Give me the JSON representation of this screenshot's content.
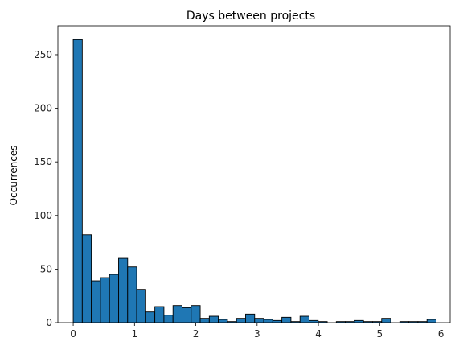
{
  "chart_data": {
    "type": "bar",
    "title": "Days between projects",
    "xlabel": "",
    "ylabel": "Occurrences",
    "xlim": [
      -0.25,
      6.15
    ],
    "ylim": [
      0,
      277
    ],
    "x_ticks": [
      0,
      1,
      2,
      3,
      4,
      5,
      6
    ],
    "y_ticks": [
      0,
      50,
      100,
      150,
      200,
      250
    ],
    "grid": false,
    "bar_color": "#1f77b4",
    "edge_color": "#000000",
    "bin_width": 0.148,
    "bins": [
      {
        "x0": 0.0,
        "count": 264
      },
      {
        "x0": 0.148,
        "count": 82
      },
      {
        "x0": 0.296,
        "count": 39
      },
      {
        "x0": 0.444,
        "count": 42
      },
      {
        "x0": 0.592,
        "count": 45
      },
      {
        "x0": 0.74,
        "count": 60
      },
      {
        "x0": 0.888,
        "count": 52
      },
      {
        "x0": 1.036,
        "count": 31
      },
      {
        "x0": 1.184,
        "count": 10
      },
      {
        "x0": 1.332,
        "count": 15
      },
      {
        "x0": 1.48,
        "count": 7
      },
      {
        "x0": 1.628,
        "count": 16
      },
      {
        "x0": 1.776,
        "count": 14
      },
      {
        "x0": 1.924,
        "count": 16
      },
      {
        "x0": 2.072,
        "count": 4
      },
      {
        "x0": 2.22,
        "count": 6
      },
      {
        "x0": 2.368,
        "count": 3
      },
      {
        "x0": 2.516,
        "count": 1
      },
      {
        "x0": 2.664,
        "count": 4
      },
      {
        "x0": 2.812,
        "count": 8
      },
      {
        "x0": 2.96,
        "count": 4
      },
      {
        "x0": 3.108,
        "count": 3
      },
      {
        "x0": 3.256,
        "count": 2
      },
      {
        "x0": 3.404,
        "count": 5
      },
      {
        "x0": 3.552,
        "count": 1
      },
      {
        "x0": 3.7,
        "count": 6
      },
      {
        "x0": 3.848,
        "count": 2
      },
      {
        "x0": 3.996,
        "count": 1
      },
      {
        "x0": 4.144,
        "count": 0
      },
      {
        "x0": 4.292,
        "count": 1
      },
      {
        "x0": 4.44,
        "count": 1
      },
      {
        "x0": 4.588,
        "count": 2
      },
      {
        "x0": 4.736,
        "count": 1
      },
      {
        "x0": 4.884,
        "count": 1
      },
      {
        "x0": 5.032,
        "count": 4
      },
      {
        "x0": 5.18,
        "count": 0
      },
      {
        "x0": 5.328,
        "count": 1
      },
      {
        "x0": 5.476,
        "count": 1
      },
      {
        "x0": 5.624,
        "count": 1
      },
      {
        "x0": 5.772,
        "count": 3
      }
    ]
  }
}
